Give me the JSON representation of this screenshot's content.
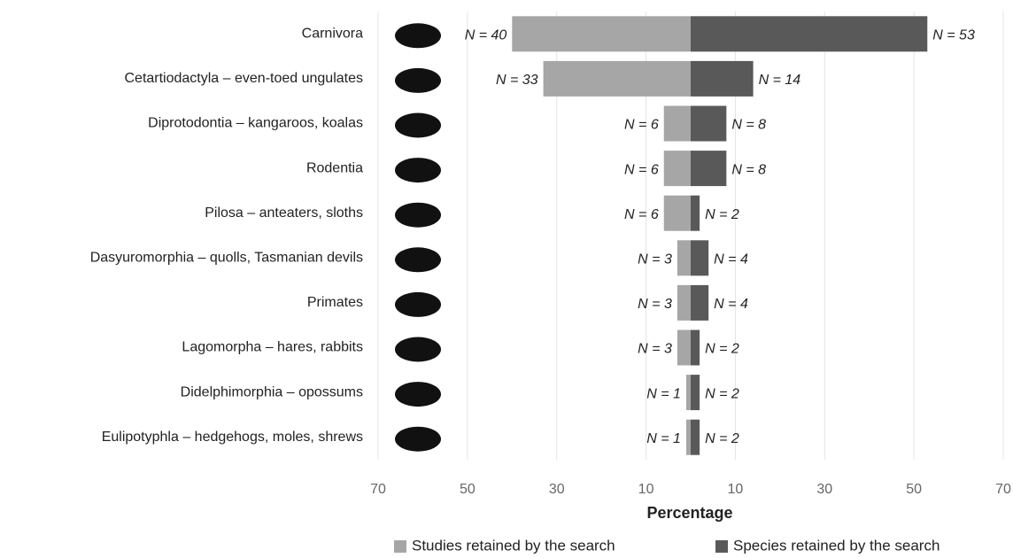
{
  "chart_data": {
    "type": "bar",
    "layout": "diverging",
    "x_label": "Percentage",
    "categories": [
      "Carnivora",
      "Cetartiodactyla – even-toed ungulates",
      "Diprotodontia – kangaroos, koalas",
      "Rodentia",
      "Pilosa – anteaters, sloths",
      "Dasyuromorphia – quolls, Tasmanian devils",
      "Primates",
      "Lagomorpha – hares, rabbits",
      "Didelphimorphia – opossums",
      "Eulipotyphla – hedgehogs, moles, shrews"
    ],
    "series": [
      {
        "name": "Studies retained by the search",
        "color": "#a6a6a6",
        "values": [
          40,
          33,
          6,
          6,
          6,
          3,
          3,
          3,
          1,
          1
        ],
        "value_labels": [
          "N = 40",
          "N = 33",
          "N = 6",
          "N = 6",
          "N = 6",
          "N = 3",
          "N = 3",
          "N = 3",
          "N = 1",
          "N = 1"
        ]
      },
      {
        "name": "Species retained by the search",
        "color": "#595959",
        "values": [
          53,
          14,
          8,
          8,
          2,
          4,
          4,
          2,
          2,
          2
        ],
        "value_labels": [
          "N = 53",
          "N = 14",
          "N = 8",
          "N = 8",
          "N = 2",
          "N = 4",
          "N = 4",
          "N = 2",
          "N = 2",
          "N = 2"
        ]
      }
    ],
    "xlim": [
      -70,
      70
    ],
    "xticks": [
      {
        "value": -70,
        "label": "70"
      },
      {
        "value": -50,
        "label": "50"
      },
      {
        "value": -30,
        "label": "30"
      },
      {
        "value": -10,
        "label": "10"
      },
      10,
      30,
      50,
      70
    ],
    "grid": true,
    "legend": "bottom"
  }
}
